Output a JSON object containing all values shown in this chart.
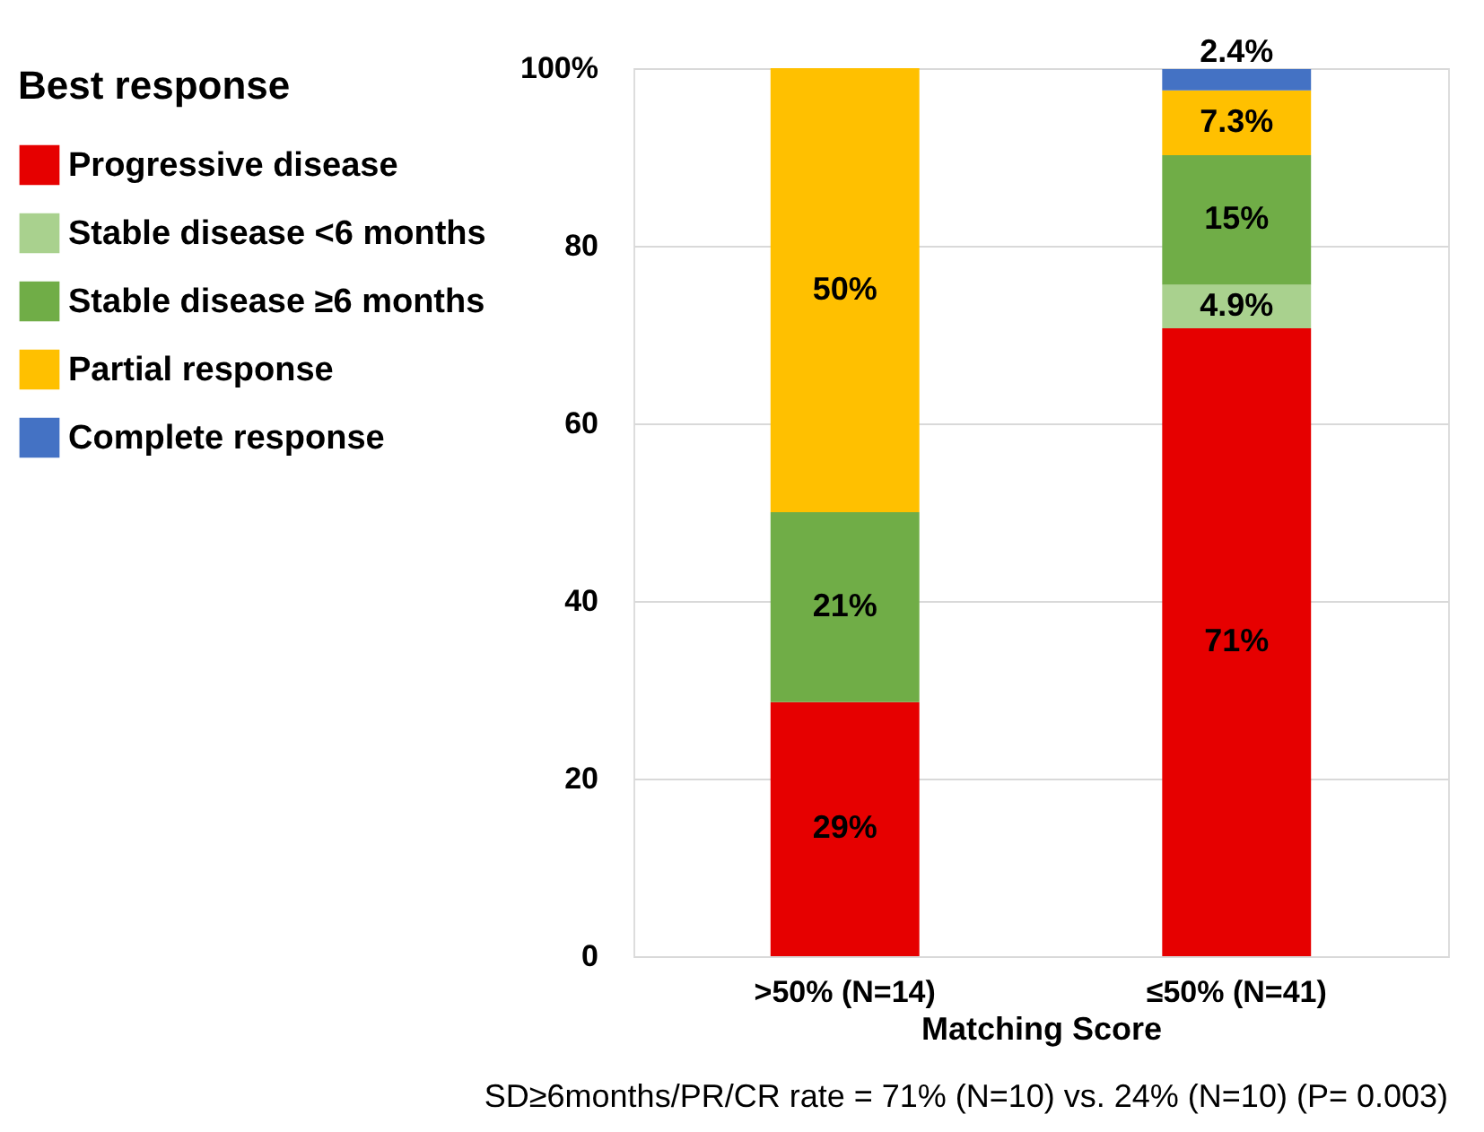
{
  "chart_data": {
    "type": "bar",
    "stacked": true,
    "xlabel": "Matching Score",
    "legend_title": "Best response",
    "legend": "left",
    "categories": [
      ">50% (N=14)",
      "≤50% (N=41)"
    ],
    "series": [
      {
        "name": "Progressive disease",
        "color": "#e60000",
        "values": [
          28.6,
          70.7
        ],
        "value_labels": [
          "29%",
          "71%"
        ]
      },
      {
        "name": "Stable disease <6 months",
        "color": "#a9d18e",
        "values": [
          null,
          4.9
        ],
        "value_labels": [
          null,
          "4.9%"
        ]
      },
      {
        "name": "Stable disease ≥6 months",
        "color": "#70ad47",
        "values": [
          21.4,
          14.6
        ],
        "value_labels": [
          "21%",
          "15%"
        ]
      },
      {
        "name": "Partial response",
        "color": "#ffc000",
        "values": [
          50,
          7.3
        ],
        "value_labels": [
          "50%",
          "7.3%"
        ]
      },
      {
        "name": "Complete response",
        "color": "#4472c4",
        "values": [
          null,
          2.4
        ],
        "value_labels": [
          null,
          "2.4%"
        ]
      }
    ],
    "ylim": [
      0,
      100
    ],
    "yticks": [
      0,
      20,
      40,
      60,
      80,
      {
        "value": 100,
        "label": "100%"
      }
    ],
    "grid": "y",
    "annotations": [
      "SD≥6months/PR/CR rate  =   71% (N=10)  vs.  24% (N=10) (P= 0.003)"
    ]
  }
}
